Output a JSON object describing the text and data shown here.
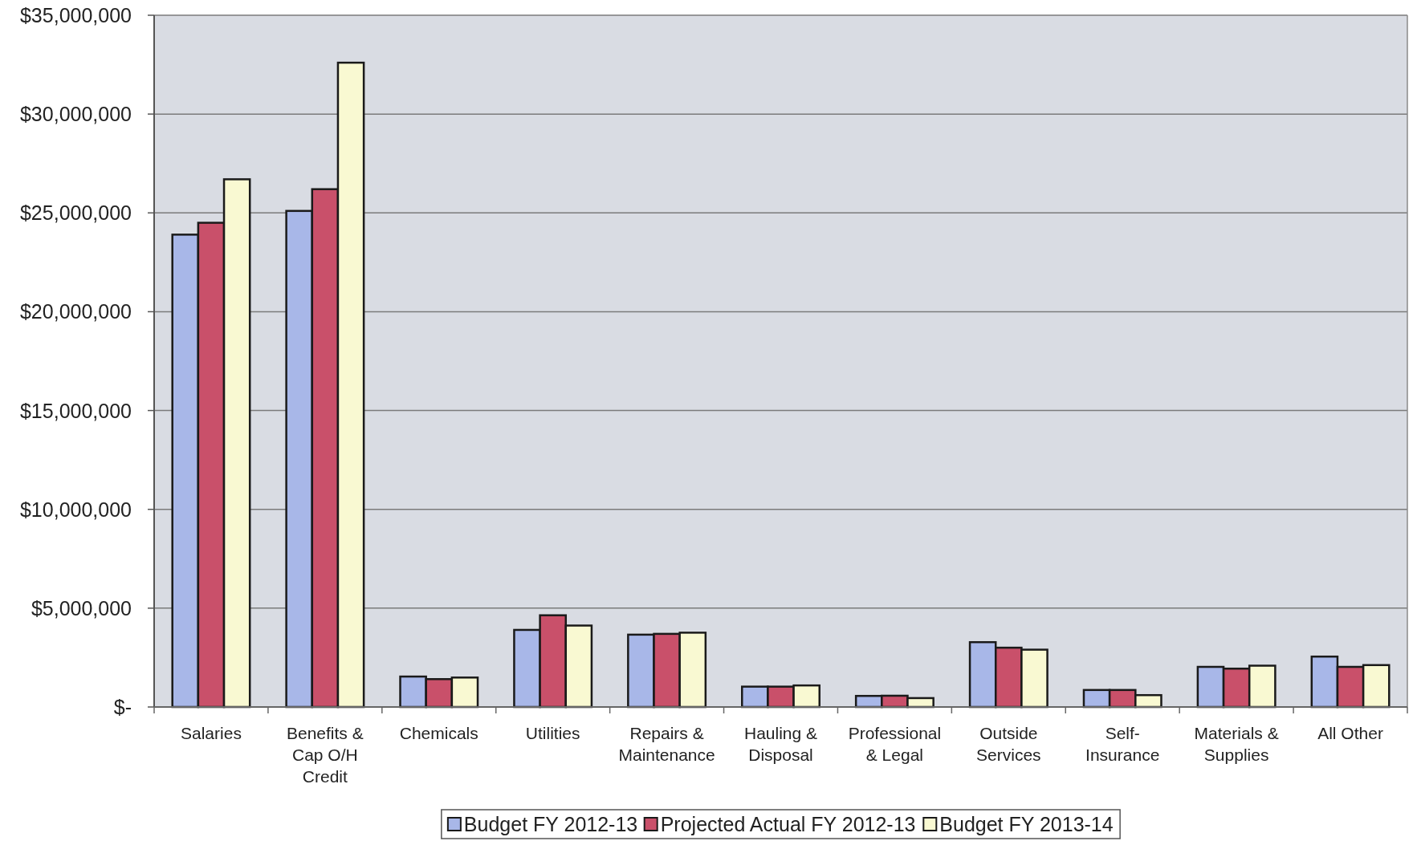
{
  "chart_data": {
    "type": "bar",
    "categories": [
      "Salaries",
      "Benefits & Cap O/H Credit",
      "Chemicals",
      "Utilities",
      "Repairs & Maintenance",
      "Hauling & Disposal",
      "Professional & Legal",
      "Outside Services",
      "Self-Insurance",
      "Materials & Supplies",
      "All Other"
    ],
    "series": [
      {
        "name": "Budget FY 2012-13",
        "color": "#a8b7e8",
        "values": [
          23900000,
          25100000,
          1540000,
          3900000,
          3660000,
          1030000,
          560000,
          3280000,
          860000,
          2030000,
          2550000
        ]
      },
      {
        "name": "Projected Actual FY 2012-13",
        "color": "#c9506a",
        "values": [
          24500000,
          26200000,
          1410000,
          4640000,
          3700000,
          1030000,
          570000,
          3000000,
          860000,
          1940000,
          2030000
        ]
      },
      {
        "name": "Budget FY 2013-14",
        "color": "#f9f9d2",
        "values": [
          26700000,
          32600000,
          1490000,
          4120000,
          3760000,
          1090000,
          450000,
          2900000,
          600000,
          2090000,
          2120000
        ]
      }
    ],
    "ylim": [
      0,
      35000000
    ],
    "yticks": [
      {
        "value": 0,
        "label": "$-"
      },
      {
        "value": 5000000,
        "label": "$5,000,000"
      },
      {
        "value": 10000000,
        "label": "$10,000,000"
      },
      {
        "value": 15000000,
        "label": "$15,000,000"
      },
      {
        "value": 20000000,
        "label": "$20,000,000"
      },
      {
        "value": 25000000,
        "label": "$25,000,000"
      },
      {
        "value": 30000000,
        "label": "$30,000,000"
      },
      {
        "value": 35000000,
        "label": "$35,000,000"
      }
    ],
    "grid": "y",
    "legend": "bottom"
  }
}
